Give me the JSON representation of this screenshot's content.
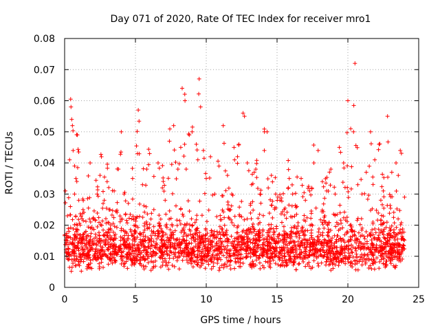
{
  "chart_data": {
    "type": "scatter",
    "title": "Day 071 of 2020, Rate Of TEC Index for receiver mro1",
    "xlabel": "GPS time / hours",
    "ylabel": "ROTI / TECUs",
    "xlim": [
      0,
      25
    ],
    "ylim": [
      0,
      0.08
    ],
    "x_ticks": [
      "0",
      "5",
      "10",
      "15",
      "20",
      "25"
    ],
    "y_ticks": [
      "0",
      "0.01",
      "0.02",
      "0.03",
      "0.04",
      "0.05",
      "0.06",
      "0.07",
      "0.08"
    ],
    "grid": true,
    "marker": "plus",
    "color": "#ff0000",
    "series": [
      {
        "x": [
          0.05,
          0.2,
          0.35,
          0.45,
          0.5,
          0.55,
          0.6,
          0.7,
          0.8,
          0.9,
          1.0,
          1.1,
          1.3,
          1.5,
          1.8,
          2.0,
          2.3,
          2.5,
          2.6,
          2.8,
          3.0,
          3.2,
          3.5,
          3.8,
          4.0,
          4.2,
          4.5,
          4.8,
          5.0,
          5.2,
          5.5,
          5.8,
          6.0,
          6.3,
          6.6,
          6.9,
          7.1,
          7.4,
          7.7,
          8.0,
          8.2,
          8.3,
          8.5,
          8.8,
          9.0,
          9.3,
          9.5,
          9.6,
          9.8,
          10.0,
          10.3,
          10.6,
          10.9,
          11.2,
          11.5,
          11.8,
          12.0,
          12.3,
          12.6,
          12.7,
          12.9,
          13.2,
          13.5,
          13.8,
          14.1,
          14.3,
          14.6,
          14.9,
          15.2,
          15.5,
          15.8,
          16.1,
          16.4,
          16.7,
          17.0,
          17.3,
          17.6,
          17.9,
          18.2,
          18.5,
          18.8,
          19.1,
          19.4,
          19.7,
          20.0,
          20.2,
          20.4,
          20.5,
          20.7,
          21.0,
          21.3,
          21.6,
          21.9,
          22.2,
          22.5,
          22.8,
          23.1,
          23.4,
          23.7,
          24.0
        ],
        "y": [
          0.031,
          0.023,
          0.041,
          0.058,
          0.054,
          0.052,
          0.044,
          0.03,
          0.035,
          0.049,
          0.028,
          0.02,
          0.025,
          0.018,
          0.04,
          0.022,
          0.03,
          0.036,
          0.042,
          0.028,
          0.034,
          0.025,
          0.031,
          0.038,
          0.05,
          0.03,
          0.027,
          0.035,
          0.02,
          0.057,
          0.033,
          0.038,
          0.043,
          0.025,
          0.04,
          0.032,
          0.028,
          0.047,
          0.052,
          0.038,
          0.045,
          0.064,
          0.06,
          0.049,
          0.05,
          0.046,
          0.067,
          0.058,
          0.044,
          0.035,
          0.042,
          0.03,
          0.039,
          0.052,
          0.036,
          0.03,
          0.041,
          0.046,
          0.056,
          0.055,
          0.04,
          0.033,
          0.038,
          0.03,
          0.044,
          0.05,
          0.036,
          0.03,
          0.028,
          0.025,
          0.032,
          0.03,
          0.026,
          0.035,
          0.028,
          0.031,
          0.04,
          0.044,
          0.034,
          0.031,
          0.038,
          0.03,
          0.045,
          0.04,
          0.06,
          0.051,
          0.05,
          0.072,
          0.033,
          0.03,
          0.037,
          0.05,
          0.041,
          0.046,
          0.031,
          0.055,
          0.037,
          0.04,
          0.044,
          0.029
        ]
      }
    ]
  }
}
